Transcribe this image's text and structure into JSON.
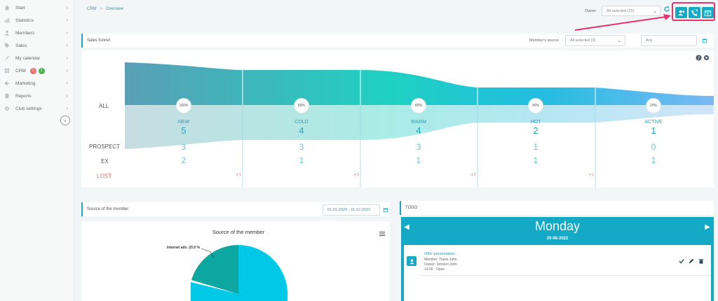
{
  "sidebar": {
    "items": [
      {
        "label": "Start",
        "icon": "home-icon"
      },
      {
        "label": "Statistics",
        "icon": "chart-icon"
      },
      {
        "label": "Members",
        "icon": "user-icon"
      },
      {
        "label": "Sales",
        "icon": "tag-icon"
      },
      {
        "label": "My calendar",
        "icon": "pen-icon"
      },
      {
        "label": "CRM",
        "icon": "grid-icon",
        "badges": [
          "1",
          "1"
        ]
      },
      {
        "label": "Marketing",
        "icon": "megaphone-icon"
      },
      {
        "label": "Reports",
        "icon": "report-icon"
      },
      {
        "label": "Club settings",
        "icon": "gear-icon"
      }
    ]
  },
  "breadcrumb": {
    "root": "CRM",
    "current": "Overview"
  },
  "header": {
    "owner_label": "Owner",
    "owner_value": "All selected (15)"
  },
  "funnel": {
    "title": "Sales funnel",
    "source_label": "Member's source",
    "source_value": "All selected (3)",
    "date_placeholder": "Any",
    "row_labels": {
      "all": "ALL",
      "prospect": "PROSPECT",
      "ex": "EX",
      "lost": "LOST"
    },
    "stages": [
      {
        "name": "NEW",
        "percent": "100%",
        "all": "5",
        "prospect": "3",
        "ex": "2",
        "lost": "1"
      },
      {
        "name": "COLD",
        "percent": "80%",
        "all": "4",
        "prospect": "3",
        "ex": "1",
        "lost": "0"
      },
      {
        "name": "WARM",
        "percent": "80%",
        "all": "4",
        "prospect": "3",
        "ex": "1",
        "lost": "2"
      },
      {
        "name": "HOT",
        "percent": "40%",
        "all": "2",
        "prospect": "1",
        "ex": "1",
        "lost": "1"
      },
      {
        "name": "ACTIVE",
        "percent": "20%",
        "all": "1",
        "prospect": "0",
        "ex": "1",
        "lost": ""
      }
    ],
    "lost_marker": "▾"
  },
  "source": {
    "panel_title": "Source of the member",
    "date_range": "01-01-2020 - 31-12-2022",
    "chart_title": "Source of the member",
    "pie_label": "Internet ads: 20.0 %"
  },
  "todo": {
    "title": "TODO",
    "day": "Monday",
    "date": "20-06-2022",
    "task": {
      "title": "Offer presentation",
      "member": "Member: Travis John",
      "owner": "Owner: Dervlon John",
      "time": "14:00 · Open"
    }
  },
  "colors": {
    "accent": "#14a9c4",
    "highlight": "#e8336d"
  }
}
